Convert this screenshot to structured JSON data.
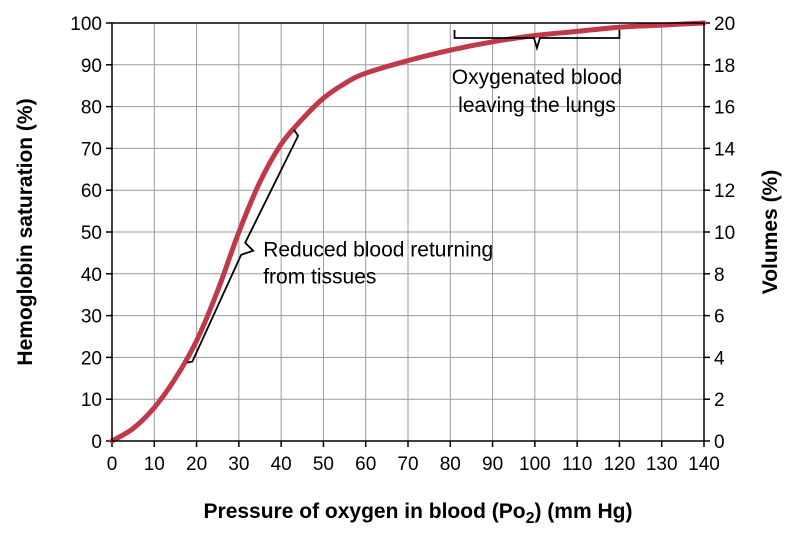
{
  "chart_data": {
    "type": "line",
    "xlabel_main": "Pressure of oxygen in blood (P",
    "xlabel_sub_o": "o",
    "xlabel_sub_2": "2",
    "xlabel_tail": ") (mm Hg)",
    "ylabel": "Hemoglobin saturation (%)",
    "y2label": "Volumes (%)",
    "xlim": [
      0,
      140
    ],
    "ylim": [
      0,
      100
    ],
    "y2lim": [
      0,
      20
    ],
    "xticks": [
      0,
      10,
      20,
      30,
      40,
      50,
      60,
      70,
      80,
      90,
      100,
      110,
      120,
      130,
      140
    ],
    "yticks": [
      0,
      10,
      20,
      30,
      40,
      50,
      60,
      70,
      80,
      90,
      100
    ],
    "y2ticks": [
      0,
      2,
      4,
      6,
      8,
      10,
      12,
      14,
      16,
      18,
      20
    ],
    "grid": true,
    "series": [
      {
        "color": "#c0394b",
        "x": [
          0,
          5,
          10,
          15,
          20,
          25,
          30,
          35,
          40,
          45,
          50,
          55,
          60,
          70,
          80,
          90,
          100,
          110,
          120,
          130,
          140
        ],
        "y": [
          0,
          3,
          8,
          15,
          24,
          36,
          50,
          62,
          71,
          77,
          82,
          85.5,
          88,
          91,
          93.5,
          95.5,
          97,
          98,
          99,
          99.5,
          100
        ]
      }
    ],
    "annotations": [
      {
        "id": "reduced",
        "lines": [
          "Reduced blood returning",
          "from tissues"
        ],
        "range_x": [
          19,
          44
        ],
        "range_y": [
          19,
          73
        ]
      },
      {
        "id": "oxygenated",
        "lines": [
          "Oxygenated blood",
          "leaving the lungs"
        ],
        "range_x": [
          81,
          120
        ]
      }
    ]
  }
}
